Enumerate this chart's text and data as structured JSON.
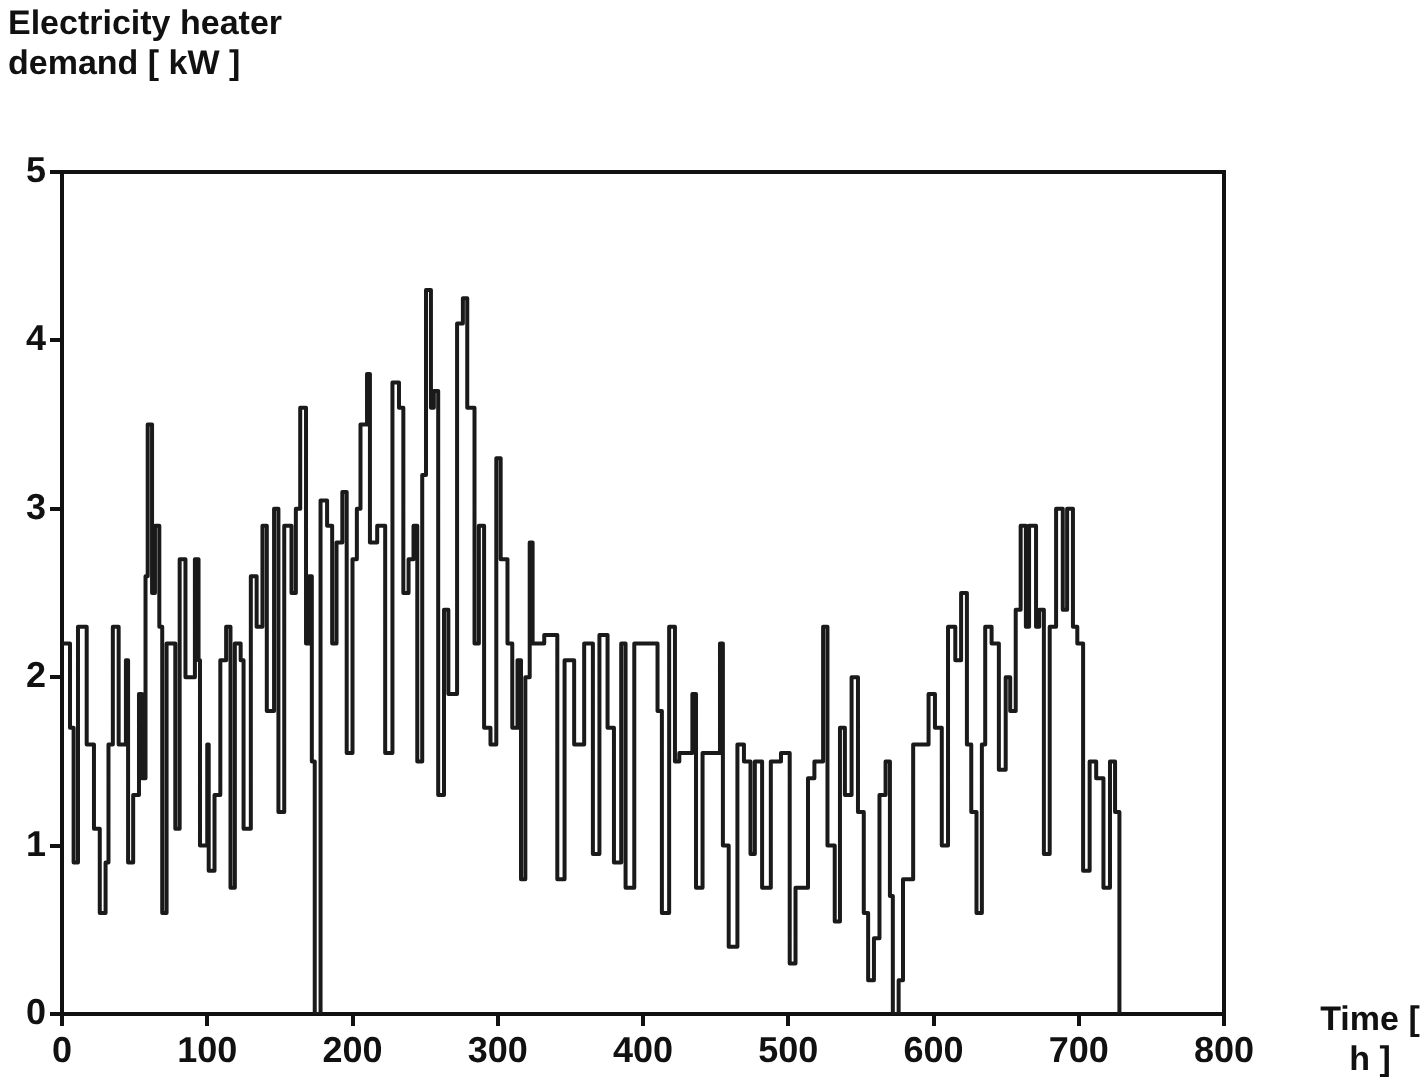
{
  "chart_data": {
    "type": "step",
    "ylabel": "Electricity heater demand [ kW ]",
    "xlabel": "Time [ h ]",
    "xlim": [
      0,
      800
    ],
    "xticks": [
      0,
      100,
      200,
      300,
      400,
      500,
      600,
      700,
      800
    ],
    "ylim": [
      0,
      5
    ],
    "yticks": [
      0,
      1,
      2,
      3,
      4,
      5
    ],
    "grid": false,
    "legend": false,
    "marker": "none",
    "line_style": "solid",
    "series": [
      {
        "color": "#1a1a1a",
        "x": [
          0,
          5.5,
          8,
          11,
          17,
          22,
          26,
          30,
          32,
          35,
          39,
          44,
          45.5,
          49,
          53,
          55,
          57.5,
          59,
          62,
          64,
          67,
          69,
          72,
          78,
          81,
          85,
          91.5,
          94,
          95,
          100,
          101,
          105,
          109,
          113,
          116,
          119,
          123,
          125,
          130,
          134,
          138,
          141,
          146,
          149,
          153,
          158,
          161,
          164,
          168,
          170,
          172,
          174,
          178,
          182.5,
          186,
          189,
          193,
          196,
          200,
          203,
          205.5,
          210,
          212,
          217,
          222.5,
          227.5,
          232,
          235,
          238.6,
          242,
          244.6,
          248,
          250.6,
          254,
          256,
          259,
          263,
          266,
          272,
          276,
          279,
          284,
          287,
          290.6,
          295,
          299,
          302,
          306.7,
          310,
          313.6,
          316,
          319,
          322,
          324,
          332,
          336.5,
          341,
          346,
          352.6,
          359.5,
          365.5,
          370,
          375.6,
          380,
          385,
          388,
          394,
          405.5,
          410,
          413,
          418,
          422,
          425,
          434,
          436.5,
          441,
          447,
          453,
          455,
          459,
          465,
          469.5,
          474,
          477,
          482,
          488,
          495,
          501,
          505,
          509,
          513.6,
          518,
          524,
          527,
          532,
          535.6,
          539,
          543.6,
          548,
          552,
          555,
          559,
          562.8,
          567,
          570,
          572,
          576,
          579,
          582.5,
          586,
          592,
          596.6,
          601,
          605.7,
          610,
          615,
          619,
          623,
          626,
          629.6,
          633.3,
          635.6,
          640,
          645,
          649.7,
          652.8,
          656.6,
          660,
          663.6,
          665.8,
          670.6,
          672.8,
          676,
          680,
          684.4,
          689,
          692,
          696,
          699,
          703,
          707.5,
          712,
          717,
          721.5,
          725,
          728
        ],
        "values": [
          2.2,
          1.7,
          0.9,
          2.3,
          1.6,
          1.1,
          0.6,
          0.9,
          1.6,
          2.3,
          1.6,
          2.1,
          0.9,
          1.3,
          1.9,
          1.4,
          2.6,
          3.5,
          2.5,
          2.9,
          2.3,
          0.6,
          2.2,
          1.1,
          2.7,
          2.0,
          2.7,
          2.1,
          1.0,
          1.6,
          0.85,
          1.3,
          2.1,
          2.3,
          0.75,
          2.2,
          2.1,
          1.1,
          2.6,
          2.3,
          2.9,
          1.8,
          3.0,
          1.2,
          2.9,
          2.5,
          3.0,
          3.6,
          2.2,
          2.6,
          1.5,
          0,
          3.05,
          2.9,
          2.2,
          2.8,
          3.1,
          1.55,
          2.7,
          3.0,
          3.5,
          3.8,
          2.8,
          2.9,
          1.55,
          3.75,
          3.6,
          2.5,
          2.7,
          2.9,
          1.5,
          3.2,
          4.3,
          3.6,
          3.7,
          1.3,
          2.4,
          1.9,
          4.1,
          4.25,
          3.6,
          2.2,
          2.9,
          1.7,
          1.6,
          3.3,
          2.7,
          2.2,
          1.7,
          2.1,
          0.8,
          2.0,
          2.8,
          2.2,
          2.25,
          2.25,
          0.8,
          2.1,
          1.6,
          2.2,
          0.95,
          2.25,
          1.7,
          0.9,
          2.2,
          0.75,
          2.2,
          2.2,
          1.8,
          0.6,
          2.3,
          1.5,
          1.55,
          1.9,
          0.75,
          1.55,
          1.55,
          2.2,
          1.0,
          0.4,
          1.6,
          1.5,
          0.95,
          1.5,
          0.75,
          1.5,
          1.55,
          0.3,
          0.75,
          0.75,
          1.4,
          1.5,
          2.3,
          1.0,
          0.55,
          1.7,
          1.3,
          2.0,
          1.2,
          0.6,
          0.2,
          0.45,
          1.3,
          1.5,
          0.7,
          0,
          0.2,
          0.8,
          0.8,
          1.6,
          1.6,
          1.9,
          1.7,
          1.0,
          2.3,
          2.1,
          2.5,
          1.6,
          1.2,
          0.6,
          1.6,
          2.3,
          2.2,
          1.45,
          2.0,
          1.8,
          2.4,
          2.9,
          2.3,
          2.9,
          2.3,
          2.4,
          0.95,
          2.3,
          3.0,
          2.4,
          3.0,
          2.3,
          2.2,
          0.85,
          1.5,
          1.4,
          0.75,
          1.5,
          1.2,
          0
        ]
      }
    ]
  }
}
